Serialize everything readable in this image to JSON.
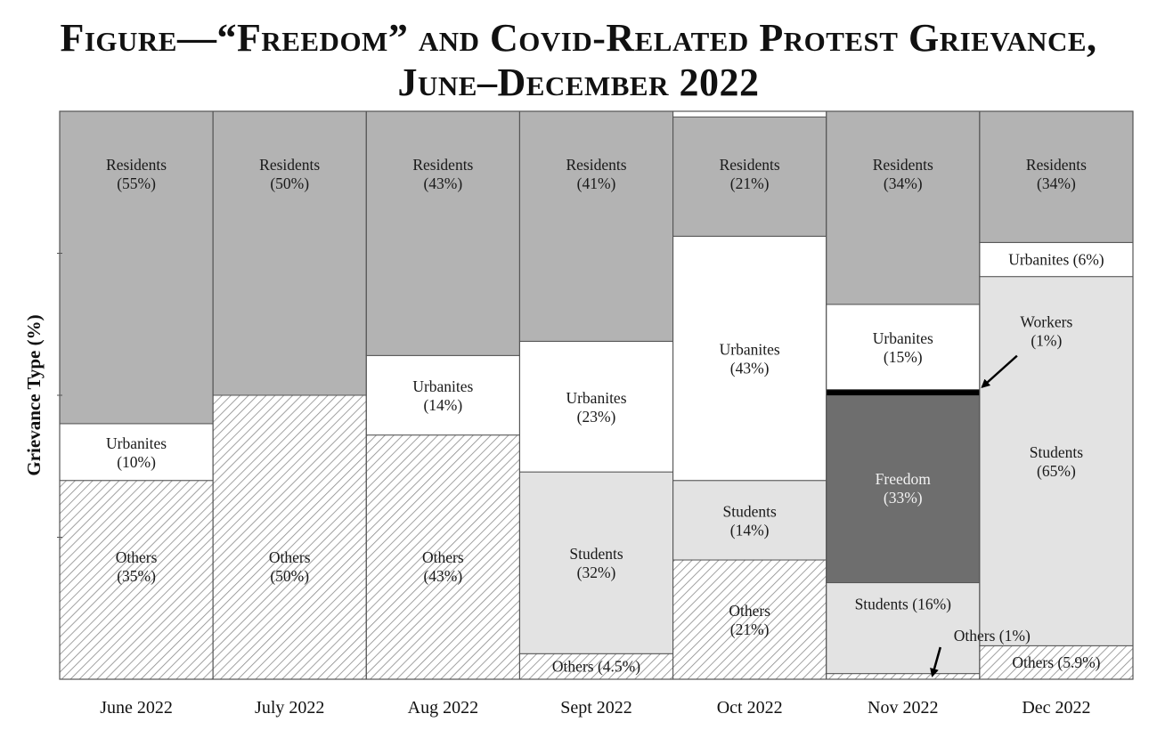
{
  "chart_data": {
    "type": "bar",
    "stacked": true,
    "title": "Figure—“Freedom” and Covid-Related Protest Grievance,",
    "subtitle": "June–December 2022",
    "xlabel": "",
    "ylabel": "Grievance Type (%)",
    "ylim": [
      0,
      100
    ],
    "grid": false,
    "categories": [
      "June 2022",
      "July 2022",
      "Aug 2022",
      "Sept 2022",
      "Oct 2022",
      "Nov 2022",
      "Dec 2022"
    ],
    "columns": [
      {
        "category": "June 2022",
        "segments": [
          {
            "name": "Others",
            "value": 35,
            "label_text": "Others",
            "pct_text": "(35%)"
          },
          {
            "name": "Urbanites",
            "value": 10,
            "label_text": "Urbanites",
            "pct_text": "(10%)"
          },
          {
            "name": "Residents",
            "value": 55,
            "label_text": "Residents",
            "pct_text": "(55%)"
          }
        ]
      },
      {
        "category": "July 2022",
        "segments": [
          {
            "name": "Others",
            "value": 50,
            "label_text": "Others",
            "pct_text": "(50%)"
          },
          {
            "name": "Residents",
            "value": 50,
            "label_text": "Residents",
            "pct_text": "(50%)"
          }
        ]
      },
      {
        "category": "Aug 2022",
        "segments": [
          {
            "name": "Others",
            "value": 43,
            "label_text": "Others",
            "pct_text": "(43%)"
          },
          {
            "name": "Urbanites",
            "value": 14,
            "label_text": "Urbanites",
            "pct_text": "(14%)"
          },
          {
            "name": "Residents",
            "value": 43,
            "label_text": "Residents",
            "pct_text": "(43%)"
          }
        ]
      },
      {
        "category": "Sept 2022",
        "segments": [
          {
            "name": "Others",
            "value": 4.5,
            "label_text": "Others (4.5%)",
            "pct_text": ""
          },
          {
            "name": "Students",
            "value": 32,
            "label_text": "Students",
            "pct_text": "(32%)"
          },
          {
            "name": "Urbanites",
            "value": 23,
            "label_text": "Urbanites",
            "pct_text": "(23%)"
          },
          {
            "name": "Residents",
            "value": 41,
            "label_text": "Residents",
            "pct_text": "(41%)"
          }
        ]
      },
      {
        "category": "Oct 2022",
        "segments": [
          {
            "name": "Others",
            "value": 21,
            "label_text": "Others",
            "pct_text": "(21%)"
          },
          {
            "name": "Students",
            "value": 14,
            "label_text": "Students",
            "pct_text": "(14%)"
          },
          {
            "name": "Urbanites",
            "value": 43,
            "label_text": "Urbanites",
            "pct_text": "(43%)"
          },
          {
            "name": "Residents",
            "value": 21,
            "label_text": "Residents",
            "pct_text": "(21%)"
          }
        ]
      },
      {
        "category": "Nov 2022",
        "segments": [
          {
            "name": "Others",
            "value": 1,
            "label_text": "Others (1%)",
            "pct_text": ""
          },
          {
            "name": "Students",
            "value": 16,
            "label_text": "Students (16%)",
            "pct_text": ""
          },
          {
            "name": "Freedom",
            "value": 33,
            "label_text": "Freedom",
            "pct_text": "(33%)"
          },
          {
            "name": "Workers",
            "value": 1,
            "label_text": "Workers",
            "pct_text": "(1%)"
          },
          {
            "name": "Urbanites",
            "value": 15,
            "label_text": "Urbanites",
            "pct_text": "(15%)"
          },
          {
            "name": "Residents",
            "value": 34,
            "label_text": "Residents",
            "pct_text": "(34%)"
          }
        ]
      },
      {
        "category": "Dec 2022",
        "segments": [
          {
            "name": "Others",
            "value": 5.9,
            "label_text": "Others (5.9%)",
            "pct_text": ""
          },
          {
            "name": "Students",
            "value": 65,
            "label_text": "Students",
            "pct_text": "(65%)"
          },
          {
            "name": "Urbanites",
            "value": 6,
            "label_text": "Urbanites (6%)",
            "pct_text": ""
          },
          {
            "name": "Residents",
            "value": 34,
            "label_text": "Residents",
            "pct_text": "(34%)"
          }
        ]
      }
    ],
    "colors": {
      "Residents": "#b3b3b3",
      "Urbanites": "#ffffff",
      "Students": "#e3e3e3",
      "Freedom": "#6e6e6e",
      "Workers": "#000000",
      "Others": "hatched"
    }
  }
}
